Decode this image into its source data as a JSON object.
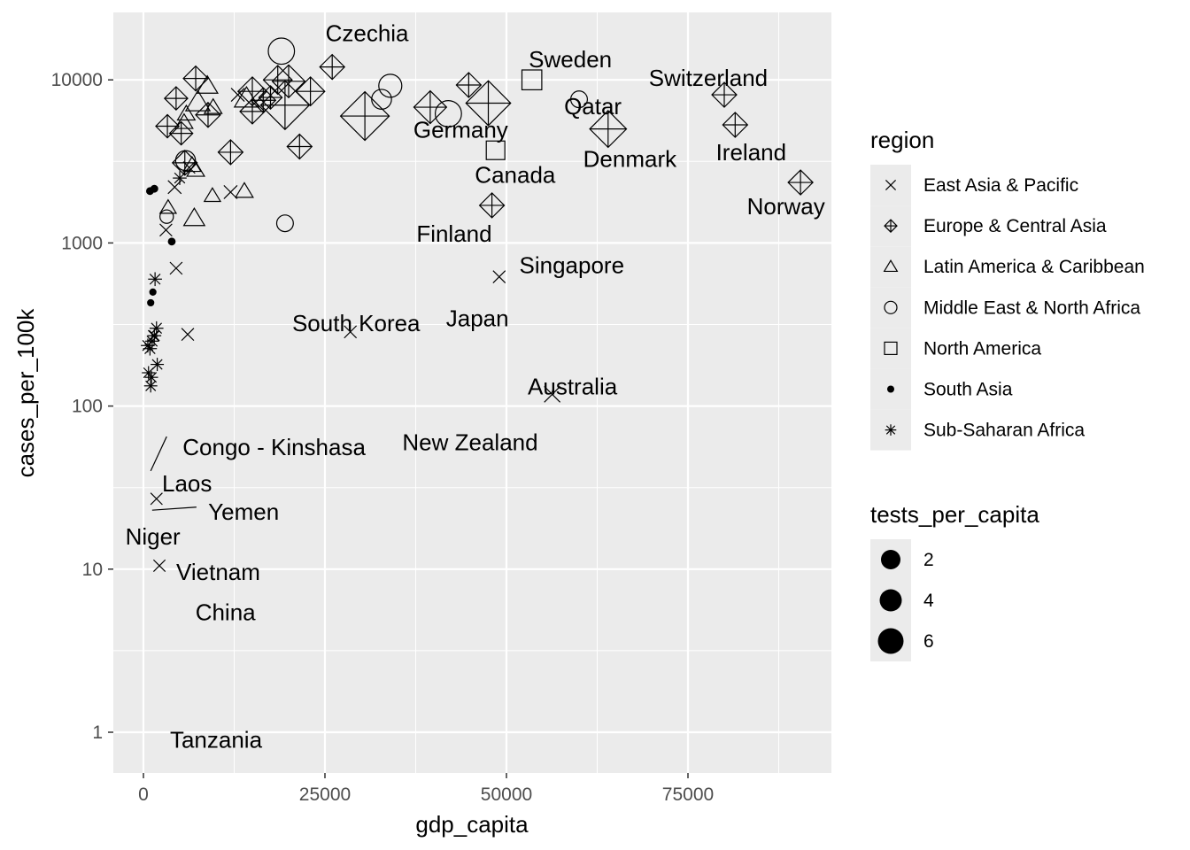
{
  "chart_data": {
    "type": "scatter",
    "title": "",
    "xlabel": "gdp_capita",
    "ylabel": "cases_per_100k",
    "xlim": [
      -8000,
      95000
    ],
    "ylim_log10": [
      -0.25,
      5.4
    ],
    "y_scale": "log10",
    "grid": true,
    "x_ticks": [
      {
        "value": 0,
        "label": "0"
      },
      {
        "value": 25000,
        "label": "25000"
      },
      {
        "value": 50000,
        "label": "50000"
      },
      {
        "value": 75000,
        "label": "75000"
      }
    ],
    "y_ticks": [
      {
        "value": 1,
        "label": "1"
      },
      {
        "value": 10,
        "label": "10"
      },
      {
        "value": 100,
        "label": "100"
      },
      {
        "value": 1000,
        "label": "1000"
      },
      {
        "value": 10000,
        "label": "10000"
      }
    ],
    "legend_region": {
      "title": "region",
      "placement": "right",
      "entries": [
        {
          "label": "East Asia & Pacific",
          "shape": "cross-x"
        },
        {
          "label": "Europe & Central Asia",
          "shape": "diamond-plus"
        },
        {
          "label": "Latin America & Caribbean",
          "shape": "triangle"
        },
        {
          "label": "Middle East & North Africa",
          "shape": "circle"
        },
        {
          "label": "North America",
          "shape": "square"
        },
        {
          "label": "South Asia",
          "shape": "filled-circle"
        },
        {
          "label": "Sub-Saharan Africa",
          "shape": "asterisk"
        }
      ]
    },
    "legend_size": {
      "title": "tests_per_capita",
      "placement": "right",
      "entries": [
        {
          "label": "2",
          "value": 2
        },
        {
          "label": "4",
          "value": 4
        },
        {
          "label": "6",
          "value": 6
        }
      ]
    },
    "points": [
      {
        "x": 19000,
        "y": 15000,
        "shape": "circle",
        "size": 3
      },
      {
        "x": 34000,
        "y": 9200,
        "shape": "circle",
        "size": 2.5
      },
      {
        "x": 32800,
        "y": 7600,
        "shape": "circle",
        "size": 2
      },
      {
        "x": 42000,
        "y": 6200,
        "shape": "circle",
        "size": 3
      },
      {
        "x": 60000,
        "y": 7600,
        "shape": "circle",
        "size": 1.5
      },
      {
        "x": 19500,
        "y": 1320,
        "shape": "circle",
        "size": 1.5
      },
      {
        "x": 5800,
        "y": 3200,
        "shape": "circle",
        "size": 2
      },
      {
        "x": 3200,
        "y": 1450,
        "shape": "circle",
        "size": 1
      },
      {
        "x": 26000,
        "y": 12000,
        "shape": "diamond-plus",
        "size": 2
      },
      {
        "x": 18500,
        "y": 10000,
        "shape": "diamond-plus",
        "size": 2.5
      },
      {
        "x": 20000,
        "y": 9800,
        "shape": "diamond-plus",
        "size": 3
      },
      {
        "x": 23000,
        "y": 8500,
        "shape": "diamond-plus",
        "size": 2.5
      },
      {
        "x": 15000,
        "y": 8500,
        "shape": "diamond-plus",
        "size": 2.5
      },
      {
        "x": 16500,
        "y": 7500,
        "shape": "diamond-plus",
        "size": 2
      },
      {
        "x": 17500,
        "y": 7800,
        "shape": "diamond-plus",
        "size": 1.8
      },
      {
        "x": 15000,
        "y": 6400,
        "shape": "diamond-plus",
        "size": 2
      },
      {
        "x": 19500,
        "y": 7000,
        "shape": "diamond-plus",
        "size": 5
      },
      {
        "x": 30500,
        "y": 6000,
        "shape": "diamond-plus",
        "size": 5
      },
      {
        "x": 39500,
        "y": 6800,
        "shape": "diamond-plus",
        "size": 3
      },
      {
        "x": 44800,
        "y": 9300,
        "shape": "diamond-plus",
        "size": 2
      },
      {
        "x": 47500,
        "y": 7200,
        "shape": "diamond-plus",
        "size": 4.5
      },
      {
        "x": 64000,
        "y": 5000,
        "shape": "diamond-plus",
        "size": 3.5
      },
      {
        "x": 80000,
        "y": 8100,
        "shape": "diamond-plus",
        "size": 2
      },
      {
        "x": 81500,
        "y": 5300,
        "shape": "diamond-plus",
        "size": 2
      },
      {
        "x": 90500,
        "y": 2350,
        "shape": "diamond-plus",
        "size": 2
      },
      {
        "x": 48000,
        "y": 1700,
        "shape": "diamond-plus",
        "size": 2
      },
      {
        "x": 21500,
        "y": 3900,
        "shape": "diamond-plus",
        "size": 2
      },
      {
        "x": 12000,
        "y": 3600,
        "shape": "diamond-plus",
        "size": 2
      },
      {
        "x": 7200,
        "y": 10200,
        "shape": "diamond-plus",
        "size": 2
      },
      {
        "x": 4500,
        "y": 7700,
        "shape": "diamond-plus",
        "size": 1.8
      },
      {
        "x": 8900,
        "y": 6100,
        "shape": "diamond-plus",
        "size": 2
      },
      {
        "x": 3300,
        "y": 5200,
        "shape": "diamond-plus",
        "size": 1.8
      },
      {
        "x": 5200,
        "y": 4700,
        "shape": "diamond-plus",
        "size": 1.8
      },
      {
        "x": 5700,
        "y": 3100,
        "shape": "diamond-plus",
        "size": 2
      },
      {
        "x": 8800,
        "y": 9200,
        "shape": "triangle",
        "size": 2
      },
      {
        "x": 7500,
        "y": 7300,
        "shape": "triangle",
        "size": 2.5
      },
      {
        "x": 9600,
        "y": 6800,
        "shape": "triangle",
        "size": 1.5
      },
      {
        "x": 14200,
        "y": 7700,
        "shape": "triangle",
        "size": 2.5
      },
      {
        "x": 5900,
        "y": 6200,
        "shape": "triangle",
        "size": 1.5
      },
      {
        "x": 5600,
        "y": 5500,
        "shape": "triangle",
        "size": 1.5
      },
      {
        "x": 6700,
        "y": 3000,
        "shape": "triangle",
        "size": 1.5
      },
      {
        "x": 7200,
        "y": 2800,
        "shape": "triangle",
        "size": 1.5
      },
      {
        "x": 13900,
        "y": 2080,
        "shape": "triangle",
        "size": 1.5
      },
      {
        "x": 9500,
        "y": 1950,
        "shape": "triangle",
        "size": 1.3
      },
      {
        "x": 7000,
        "y": 1420,
        "shape": "triangle",
        "size": 2
      },
      {
        "x": 3400,
        "y": 1650,
        "shape": "triangle",
        "size": 1.3
      },
      {
        "x": 4300,
        "y": 2200,
        "shape": "cross-x",
        "size": 1.5
      },
      {
        "x": 12000,
        "y": 2050,
        "shape": "cross-x",
        "size": 1.5
      },
      {
        "x": 3100,
        "y": 1200,
        "shape": "cross-x",
        "size": 1.3
      },
      {
        "x": 4500,
        "y": 700,
        "shape": "cross-x",
        "size": 1.3
      },
      {
        "x": 49000,
        "y": 620,
        "shape": "cross-x",
        "size": 1.3
      },
      {
        "x": 28500,
        "y": 285,
        "shape": "cross-x",
        "size": 1.3
      },
      {
        "x": 6100,
        "y": 275,
        "shape": "cross-x",
        "size": 1.3
      },
      {
        "x": 56300,
        "y": 118,
        "shape": "cross-x",
        "size": 2
      },
      {
        "x": 1400,
        "y": 270,
        "shape": "cross-x",
        "size": 1
      },
      {
        "x": 1800,
        "y": 27,
        "shape": "cross-x",
        "size": 1.2
      },
      {
        "x": 2200,
        "y": 10.5,
        "shape": "cross-x",
        "size": 1.2
      },
      {
        "x": 6300,
        "y": 2900,
        "shape": "cross-x",
        "size": 1.2
      },
      {
        "x": 13000,
        "y": 8100,
        "shape": "cross-x",
        "size": 1.5
      },
      {
        "x": 53500,
        "y": 10000,
        "shape": "square",
        "size": 2
      },
      {
        "x": 48500,
        "y": 3700,
        "shape": "square",
        "size": 1.8
      },
      {
        "x": 900,
        "y": 2080,
        "shape": "filled-circle",
        "size": 1.5
      },
      {
        "x": 1500,
        "y": 2150,
        "shape": "filled-circle",
        "size": 1.5
      },
      {
        "x": 3900,
        "y": 1020,
        "shape": "filled-circle",
        "size": 1.5
      },
      {
        "x": 1300,
        "y": 500,
        "shape": "filled-circle",
        "size": 1
      },
      {
        "x": 1000,
        "y": 430,
        "shape": "filled-circle",
        "size": 1
      },
      {
        "x": 5000,
        "y": 2500,
        "shape": "asterisk",
        "size": 1.3
      },
      {
        "x": 1600,
        "y": 600,
        "shape": "asterisk",
        "size": 1.3
      },
      {
        "x": 1800,
        "y": 300,
        "shape": "asterisk",
        "size": 1.3
      },
      {
        "x": 1500,
        "y": 270,
        "shape": "asterisk",
        "size": 1.3
      },
      {
        "x": 600,
        "y": 235,
        "shape": "asterisk",
        "size": 1.3
      },
      {
        "x": 900,
        "y": 225,
        "shape": "asterisk",
        "size": 1.3
      },
      {
        "x": 1200,
        "y": 250,
        "shape": "asterisk",
        "size": 1.3
      },
      {
        "x": 700,
        "y": 160,
        "shape": "asterisk",
        "size": 1.2
      },
      {
        "x": 1900,
        "y": 180,
        "shape": "asterisk",
        "size": 1.2
      },
      {
        "x": 1100,
        "y": 150,
        "shape": "asterisk",
        "size": 1.2
      },
      {
        "x": 1000,
        "y": 133,
        "shape": "asterisk",
        "size": 1.2
      }
    ],
    "labels": [
      {
        "text": "Czechia",
        "x": 30800,
        "y": 19300
      },
      {
        "text": "Sweden",
        "x": 58800,
        "y": 13400
      },
      {
        "text": "Switzerland",
        "x": 77800,
        "y": 10300
      },
      {
        "text": "Germany",
        "x": 43700,
        "y": 4950
      },
      {
        "text": "Qatar",
        "x": 61900,
        "y": 6900
      },
      {
        "text": "Ireland",
        "x": 83700,
        "y": 3590
      },
      {
        "text": "Denmark",
        "x": 67000,
        "y": 3280
      },
      {
        "text": "Canada",
        "x": 51200,
        "y": 2620
      },
      {
        "text": "Norway",
        "x": 88500,
        "y": 1680
      },
      {
        "text": "Finland",
        "x": 42800,
        "y": 1140
      },
      {
        "text": "Singapore",
        "x": 59000,
        "y": 730
      },
      {
        "text": "Japan",
        "x": 46000,
        "y": 345
      },
      {
        "text": "South Korea",
        "x": 29300,
        "y": 323
      },
      {
        "text": "Australia",
        "x": 59100,
        "y": 132
      },
      {
        "text": "New Zealand",
        "x": 45000,
        "y": 60
      },
      {
        "text": "Congo - Kinshasa",
        "x": 18000,
        "y": 56
      },
      {
        "text": "Laos",
        "x": 6000,
        "y": 33.5
      },
      {
        "text": "Yemen",
        "x": 13800,
        "y": 22.5
      },
      {
        "text": "Niger",
        "x": 1300,
        "y": 15.8
      },
      {
        "text": "Vietnam",
        "x": 10300,
        "y": 9.6
      },
      {
        "text": "China",
        "x": 11300,
        "y": 5.45
      },
      {
        "text": "Tanzania",
        "x": 10000,
        "y": 0.9
      }
    ],
    "segments": [
      {
        "x1": 1000,
        "y1": 40,
        "x2": 3200,
        "y2": 65
      },
      {
        "x1": 1200,
        "y1": 23,
        "x2": 7300,
        "y2": 24
      }
    ]
  }
}
